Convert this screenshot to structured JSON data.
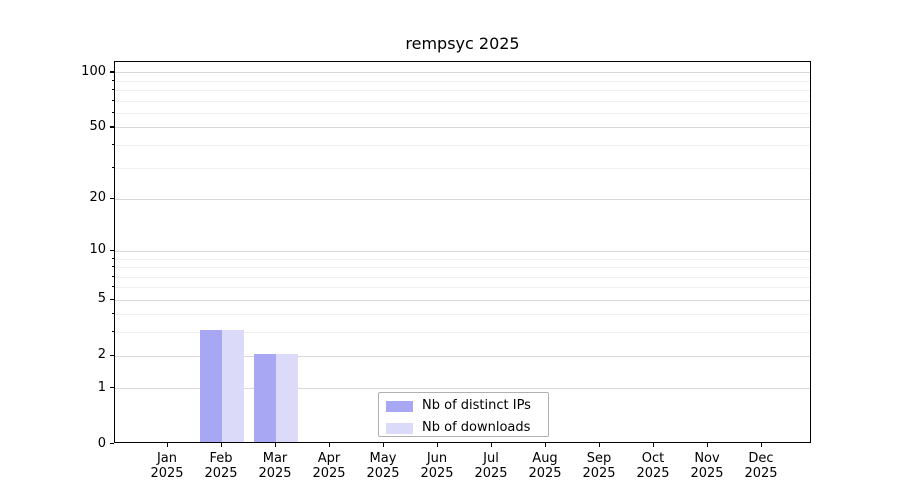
{
  "chart_data": {
    "type": "bar",
    "title": "rempsyc 2025",
    "categories": [
      "Jan",
      "Feb",
      "Mar",
      "Apr",
      "May",
      "Jun",
      "Jul",
      "Aug",
      "Sep",
      "Oct",
      "Nov",
      "Dec"
    ],
    "year": "2025",
    "series": [
      {
        "name": "Nb of distinct IPs",
        "color": "#a7a7f4",
        "values": [
          0,
          3,
          2,
          0,
          0,
          0,
          0,
          0,
          0,
          0,
          0,
          0
        ]
      },
      {
        "name": "Nb of downloads",
        "color": "#dbdbf9",
        "values": [
          0,
          3,
          2,
          0,
          0,
          0,
          0,
          0,
          0,
          0,
          0,
          0
        ]
      }
    ],
    "xlabel": "",
    "ylabel": "",
    "yscale": "log1p",
    "ylim": [
      0,
      114
    ],
    "y_major_ticks": [
      0,
      1,
      2,
      5,
      10,
      20,
      50,
      100
    ],
    "y_minor_ticks": [
      3,
      4,
      6,
      7,
      8,
      9,
      30,
      40,
      60,
      70,
      80,
      90
    ],
    "grid": true,
    "legend_position": "lower center inside plot"
  }
}
